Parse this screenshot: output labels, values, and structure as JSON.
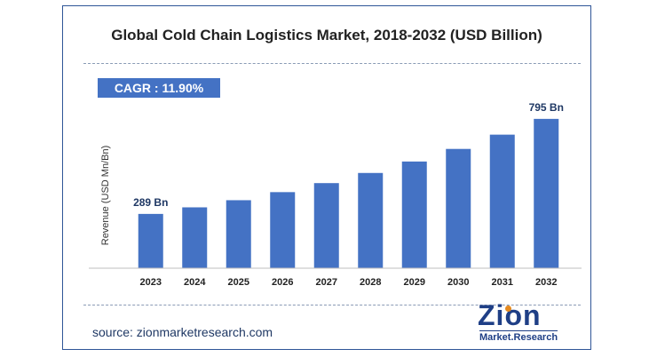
{
  "chart_data": {
    "type": "bar",
    "title": "Global Cold Chain Logistics Market, 2018-2032 (USD Billion)",
    "ylabel": "Revenue (USD Mn/Bn)",
    "xlabel": "",
    "categories": [
      "2023",
      "2024",
      "2025",
      "2026",
      "2027",
      "2028",
      "2029",
      "2030",
      "2031",
      "2032"
    ],
    "values": [
      289,
      324,
      362,
      405,
      453,
      507,
      568,
      635,
      711,
      795
    ],
    "data_labels": {
      "0": "289 Bn",
      "9": "795 Bn"
    },
    "ylim": [
      0,
      870
    ],
    "grid": false,
    "bar_color": "#4472c4"
  },
  "cagr_label": "CAGR : 11.90%",
  "source_text": "source: zionmarketresearch.com",
  "logo": {
    "main": "Zion",
    "sub": "Market.Research"
  },
  "colors": {
    "accent": "#4472c4",
    "border": "#2f5597",
    "logo": "#1f3f86",
    "logo_dot": "#e58a1f"
  }
}
